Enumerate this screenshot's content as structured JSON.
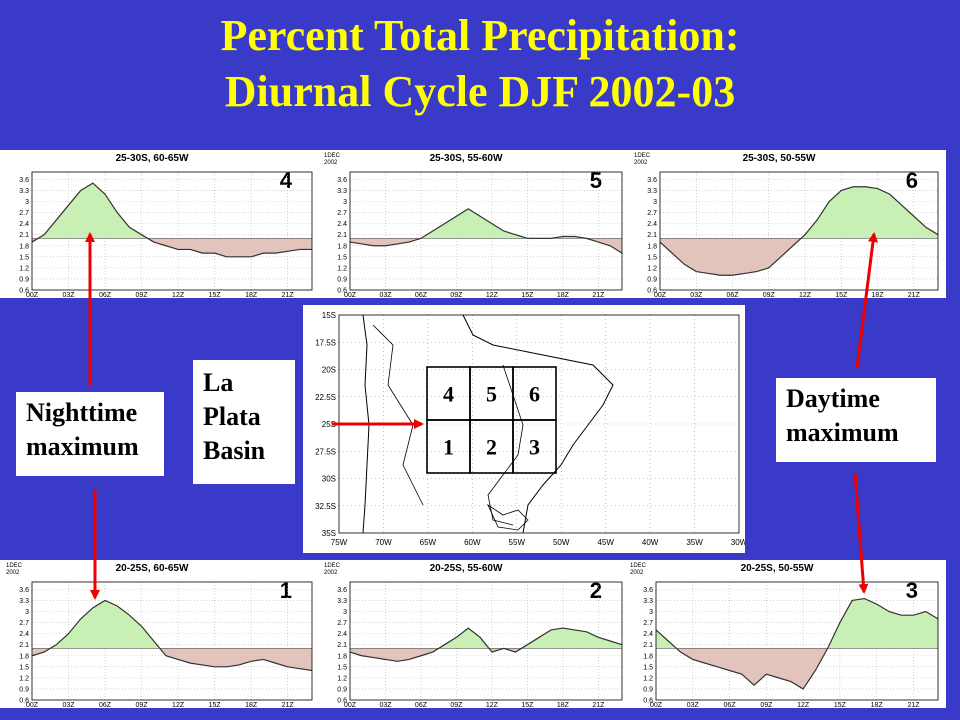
{
  "title_line1": "Percent Total Precipitation:",
  "title_line2": "Diurnal Cycle DJF 2002-03",
  "callouts": {
    "nighttime": [
      "Nighttime",
      "maximum"
    ],
    "daytime": [
      "Daytime",
      "maximum"
    ],
    "basin": [
      "La",
      "Plata",
      "Basin"
    ]
  },
  "colors": {
    "above": "#c8f0b4",
    "below": "#e3c4bc",
    "line": "#333333",
    "grid": "#b8b8b8",
    "arrow": "#ee0000"
  },
  "chart_data": [
    {
      "type": "area",
      "panel": "4",
      "header": "25-30S, 60-65W",
      "x": [
        "00Z",
        "01Z",
        "02Z",
        "03Z",
        "04Z",
        "05Z",
        "06Z",
        "07Z",
        "08Z",
        "09Z",
        "10Z",
        "11Z",
        "12Z",
        "13Z",
        "14Z",
        "15Z",
        "16Z",
        "17Z",
        "18Z",
        "19Z",
        "20Z",
        "21Z",
        "22Z",
        "23Z"
      ],
      "values": [
        1.9,
        2.1,
        2.5,
        2.9,
        3.3,
        3.5,
        3.2,
        2.7,
        2.3,
        2.1,
        1.9,
        1.8,
        1.7,
        1.7,
        1.6,
        1.6,
        1.5,
        1.5,
        1.5,
        1.6,
        1.6,
        1.65,
        1.7,
        1.7
      ],
      "baseline": 2.0,
      "xticks": [
        "00Z",
        "03Z",
        "06Z",
        "09Z",
        "12Z",
        "15Z",
        "18Z",
        "21Z"
      ],
      "yticks": [
        "0.6",
        "0.9",
        "1.2",
        "1.5",
        "1.8",
        "2.1",
        "2.4",
        "2.7",
        "3",
        "3.3",
        "3.6"
      ],
      "ylim": [
        0.6,
        3.8
      ]
    },
    {
      "type": "area",
      "panel": "5",
      "header": "25-30S, 55-60W",
      "corner": [
        "1DEC",
        "2002"
      ],
      "x": [
        "00Z",
        "01Z",
        "02Z",
        "03Z",
        "04Z",
        "05Z",
        "06Z",
        "07Z",
        "08Z",
        "09Z",
        "10Z",
        "11Z",
        "12Z",
        "13Z",
        "14Z",
        "15Z",
        "16Z",
        "17Z",
        "18Z",
        "19Z",
        "20Z",
        "21Z",
        "22Z",
        "23Z"
      ],
      "values": [
        1.9,
        1.85,
        1.8,
        1.8,
        1.85,
        1.9,
        2.0,
        2.2,
        2.4,
        2.6,
        2.8,
        2.6,
        2.4,
        2.2,
        2.1,
        2.0,
        2.0,
        2.0,
        2.05,
        2.05,
        2.0,
        1.9,
        1.8,
        1.6
      ],
      "baseline": 2.0,
      "xticks": [
        "00Z",
        "03Z",
        "06Z",
        "09Z",
        "12Z",
        "15Z",
        "18Z",
        "21Z"
      ],
      "yticks": [
        "0.6",
        "0.9",
        "1.2",
        "1.5",
        "1.8",
        "2.1",
        "2.4",
        "2.7",
        "3",
        "3.3",
        "3.6"
      ],
      "ylim": [
        0.6,
        3.8
      ]
    },
    {
      "type": "area",
      "panel": "6",
      "header": "25-30S, 50-55W",
      "corner": [
        "1DEC",
        "2002"
      ],
      "x": [
        "00Z",
        "01Z",
        "02Z",
        "03Z",
        "04Z",
        "05Z",
        "06Z",
        "07Z",
        "08Z",
        "09Z",
        "10Z",
        "11Z",
        "12Z",
        "13Z",
        "14Z",
        "15Z",
        "16Z",
        "17Z",
        "18Z",
        "19Z",
        "20Z",
        "21Z",
        "22Z",
        "23Z"
      ],
      "values": [
        1.9,
        1.6,
        1.3,
        1.1,
        1.05,
        1.0,
        1.0,
        1.05,
        1.1,
        1.2,
        1.5,
        1.8,
        2.1,
        2.5,
        3.0,
        3.3,
        3.4,
        3.4,
        3.35,
        3.2,
        2.9,
        2.6,
        2.3,
        2.1
      ],
      "baseline": 2.0,
      "xticks": [
        "00Z",
        "03Z",
        "06Z",
        "09Z",
        "12Z",
        "15Z",
        "18Z",
        "21Z"
      ],
      "yticks": [
        "0.6",
        "0.9",
        "1.2",
        "1.5",
        "1.8",
        "2.1",
        "2.4",
        "2.7",
        "3",
        "3.3",
        "3.6"
      ],
      "ylim": [
        0.6,
        3.8
      ]
    },
    {
      "type": "area",
      "panel": "1",
      "header": "20-25S, 60-65W",
      "corner": [
        "1DEC",
        "2002"
      ],
      "x": [
        "00Z",
        "01Z",
        "02Z",
        "03Z",
        "04Z",
        "05Z",
        "06Z",
        "07Z",
        "08Z",
        "09Z",
        "10Z",
        "11Z",
        "12Z",
        "13Z",
        "14Z",
        "15Z",
        "16Z",
        "17Z",
        "18Z",
        "19Z",
        "20Z",
        "21Z",
        "22Z",
        "23Z"
      ],
      "values": [
        1.8,
        1.9,
        2.1,
        2.4,
        2.8,
        3.1,
        3.3,
        3.15,
        2.9,
        2.6,
        2.2,
        1.8,
        1.7,
        1.6,
        1.55,
        1.5,
        1.5,
        1.55,
        1.65,
        1.7,
        1.6,
        1.5,
        1.45,
        1.4
      ],
      "baseline": 2.0,
      "xticks": [
        "00Z",
        "03Z",
        "06Z",
        "09Z",
        "12Z",
        "15Z",
        "18Z",
        "21Z"
      ],
      "yticks": [
        "0.6",
        "0.9",
        "1.2",
        "1.5",
        "1.8",
        "2.1",
        "2.4",
        "2.7",
        "3",
        "3.3",
        "3.6"
      ],
      "ylim": [
        0.6,
        3.8
      ]
    },
    {
      "type": "area",
      "panel": "2",
      "header": "20-25S, 55-60W",
      "corner": [
        "1DEC",
        "2002"
      ],
      "x": [
        "00Z",
        "01Z",
        "02Z",
        "03Z",
        "04Z",
        "05Z",
        "06Z",
        "07Z",
        "08Z",
        "09Z",
        "10Z",
        "11Z",
        "12Z",
        "13Z",
        "14Z",
        "15Z",
        "16Z",
        "17Z",
        "18Z",
        "19Z",
        "20Z",
        "21Z",
        "22Z",
        "23Z"
      ],
      "values": [
        1.9,
        1.8,
        1.75,
        1.7,
        1.65,
        1.7,
        1.8,
        1.9,
        2.1,
        2.3,
        2.55,
        2.3,
        1.9,
        2.0,
        1.9,
        2.1,
        2.3,
        2.5,
        2.55,
        2.5,
        2.45,
        2.3,
        2.2,
        2.1
      ],
      "baseline": 2.0,
      "xticks": [
        "00Z",
        "03Z",
        "06Z",
        "09Z",
        "12Z",
        "15Z",
        "18Z",
        "21Z"
      ],
      "yticks": [
        "0.6",
        "0.9",
        "1.2",
        "1.5",
        "1.8",
        "2.1",
        "2.4",
        "2.7",
        "3",
        "3.3",
        "3.6"
      ],
      "ylim": [
        0.6,
        3.8
      ]
    },
    {
      "type": "area",
      "panel": "3",
      "header": "20-25S, 50-55W",
      "corner": [
        "1DEC",
        "2002"
      ],
      "x": [
        "00Z",
        "01Z",
        "02Z",
        "03Z",
        "04Z",
        "05Z",
        "06Z",
        "07Z",
        "08Z",
        "09Z",
        "10Z",
        "11Z",
        "12Z",
        "13Z",
        "14Z",
        "15Z",
        "16Z",
        "17Z",
        "18Z",
        "19Z",
        "20Z",
        "21Z",
        "22Z",
        "23Z"
      ],
      "values": [
        2.5,
        2.2,
        1.9,
        1.7,
        1.6,
        1.5,
        1.4,
        1.3,
        1.0,
        1.3,
        1.2,
        1.1,
        0.9,
        1.4,
        2.0,
        2.7,
        3.3,
        3.35,
        3.2,
        3.0,
        2.9,
        2.9,
        3.0,
        2.8
      ],
      "baseline": 2.0,
      "xticks": [
        "00Z",
        "03Z",
        "06Z",
        "09Z",
        "12Z",
        "15Z",
        "18Z",
        "21Z"
      ],
      "yticks": [
        "0.6",
        "0.9",
        "1.2",
        "1.5",
        "1.8",
        "2.1",
        "2.4",
        "2.7",
        "3",
        "3.3",
        "3.6"
      ],
      "ylim": [
        0.6,
        3.8
      ]
    }
  ],
  "map": {
    "lat_ticks": [
      "15S",
      "17.5S",
      "20S",
      "22.5S",
      "25S",
      "27.5S",
      "30S",
      "32.5S",
      "35S"
    ],
    "lon_ticks": [
      "75W",
      "70W",
      "65W",
      "60W",
      "55W",
      "50W",
      "45W",
      "40W",
      "35W",
      "30W"
    ],
    "boxes": [
      "4",
      "5",
      "6",
      "1",
      "2",
      "3"
    ]
  }
}
